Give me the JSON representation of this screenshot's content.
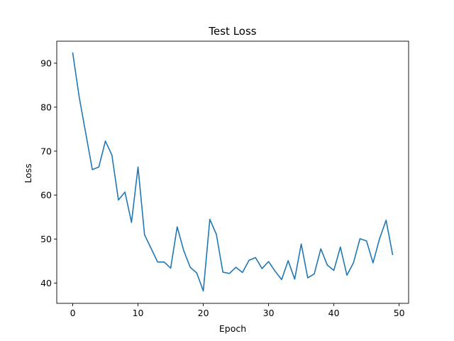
{
  "chart_data": {
    "type": "line",
    "title": "Test Loss",
    "xlabel": "Epoch",
    "ylabel": "Loss",
    "xlim": [
      -2.45,
      51.45
    ],
    "ylim": [
      35.4,
      95.0
    ],
    "xticks": [
      0,
      10,
      20,
      30,
      40,
      50
    ],
    "yticks": [
      40,
      50,
      60,
      70,
      80,
      90
    ],
    "grid": false,
    "legend": "none",
    "series": [
      {
        "color": "#1f77b4",
        "x": [
          0,
          1,
          2,
          3,
          4,
          5,
          6,
          7,
          8,
          9,
          10,
          11,
          12,
          13,
          14,
          15,
          16,
          17,
          18,
          19,
          20,
          21,
          22,
          23,
          24,
          25,
          26,
          27,
          28,
          29,
          30,
          31,
          32,
          33,
          34,
          35,
          36,
          37,
          38,
          39,
          40,
          41,
          42,
          43,
          44,
          45,
          46,
          47,
          48,
          49
        ],
        "values": [
          92.3,
          82.2,
          74.0,
          65.8,
          66.4,
          72.3,
          69.1,
          58.9,
          60.7,
          53.8,
          66.4,
          51.0,
          47.9,
          44.8,
          44.8,
          43.4,
          52.8,
          47.4,
          43.6,
          42.3,
          38.2,
          54.5,
          51.1,
          42.5,
          42.2,
          43.6,
          42.4,
          45.2,
          45.8,
          43.3,
          44.9,
          42.7,
          40.8,
          45.1,
          40.9,
          48.9,
          41.2,
          42.1,
          47.8,
          44.1,
          42.9,
          48.2,
          41.8,
          44.6,
          50.1,
          49.6,
          44.6,
          50.1,
          54.3,
          46.5
        ]
      }
    ]
  }
}
